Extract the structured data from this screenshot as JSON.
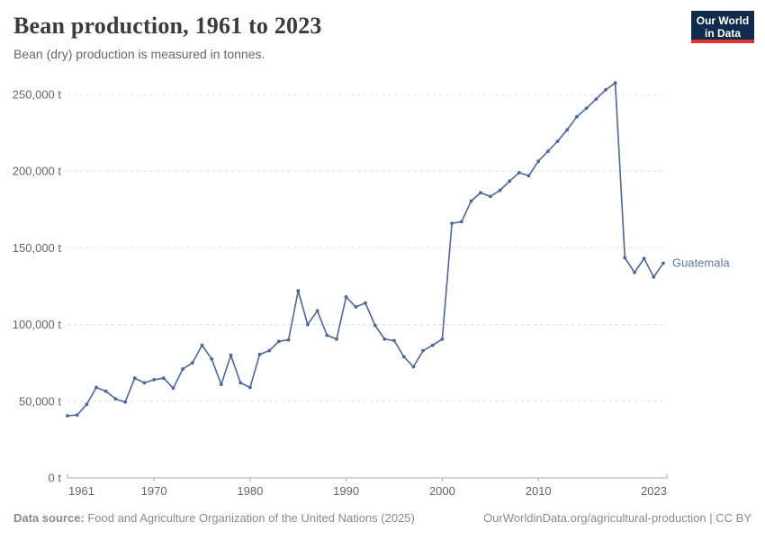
{
  "header": {
    "title": "Bean production, 1961 to 2023",
    "subtitle": "Bean (dry) production is measured in tonnes."
  },
  "logo": {
    "line1": "Our World",
    "line2": "in Data",
    "bg_color": "#102b4e",
    "stripe_color": "#dc352b"
  },
  "footer": {
    "source_label": "Data source:",
    "source_text": " Food and Agriculture Organization of the United Nations (2025)",
    "credit": "OurWorldinData.org/agricultural-production | CC BY"
  },
  "colors": {
    "line": "#4a679e",
    "entity_label": "#5b79ab",
    "gridline": "#dddddd",
    "axis": "#a8a8a8",
    "tick_text": "#666666",
    "title_text": "#3b3b3b",
    "subtitle_text": "#666666",
    "footer_text": "#8a8a8a"
  },
  "chart_data": {
    "type": "line",
    "title": "Bean production, 1961 to 2023",
    "subtitle": "Bean (dry) production is measured in tonnes.",
    "unit": "t",
    "grid": true,
    "legend_position": "end-of-line",
    "entity_label": "Guatemala",
    "xlim": [
      1961,
      2023
    ],
    "ylim": [
      0,
      260000
    ],
    "xticks": [
      1961,
      1970,
      1980,
      1990,
      2000,
      2010,
      2023
    ],
    "yticks": [
      0,
      50000,
      100000,
      150000,
      200000,
      250000
    ],
    "ytick_labels": [
      "0 t",
      "50,000 t",
      "100,000 t",
      "150,000 t",
      "200,000 t",
      "250,000 t"
    ],
    "x": [
      1961,
      1962,
      1963,
      1964,
      1965,
      1966,
      1967,
      1968,
      1969,
      1970,
      1971,
      1972,
      1973,
      1974,
      1975,
      1976,
      1977,
      1978,
      1979,
      1980,
      1981,
      1982,
      1983,
      1984,
      1985,
      1986,
      1987,
      1988,
      1989,
      1990,
      1991,
      1992,
      1993,
      1994,
      1995,
      1996,
      1997,
      1998,
      1999,
      2000,
      2001,
      2002,
      2003,
      2004,
      2005,
      2006,
      2007,
      2008,
      2009,
      2010,
      2011,
      2012,
      2013,
      2014,
      2015,
      2016,
      2017,
      2018,
      2019,
      2020,
      2021,
      2022,
      2023
    ],
    "series": [
      {
        "name": "Guatemala",
        "values": [
          40500,
          41000,
          48000,
          59000,
          56500,
          51500,
          49500,
          65000,
          62000,
          64000,
          65000,
          58500,
          71000,
          75000,
          86500,
          77500,
          61000,
          80000,
          62000,
          59000,
          80500,
          83000,
          89000,
          90000,
          122000,
          100000,
          109000,
          93000,
          90500,
          118000,
          111500,
          114000,
          99500,
          90500,
          89500,
          79000,
          72500,
          83000,
          86500,
          90500,
          166000,
          167000,
          180500,
          186000,
          183500,
          187500,
          193500,
          199000,
          197000,
          206500,
          213000,
          219500,
          227000,
          235500,
          241000,
          247000,
          253000,
          257500,
          143500,
          134000,
          143000,
          131000,
          140000
        ]
      }
    ]
  }
}
